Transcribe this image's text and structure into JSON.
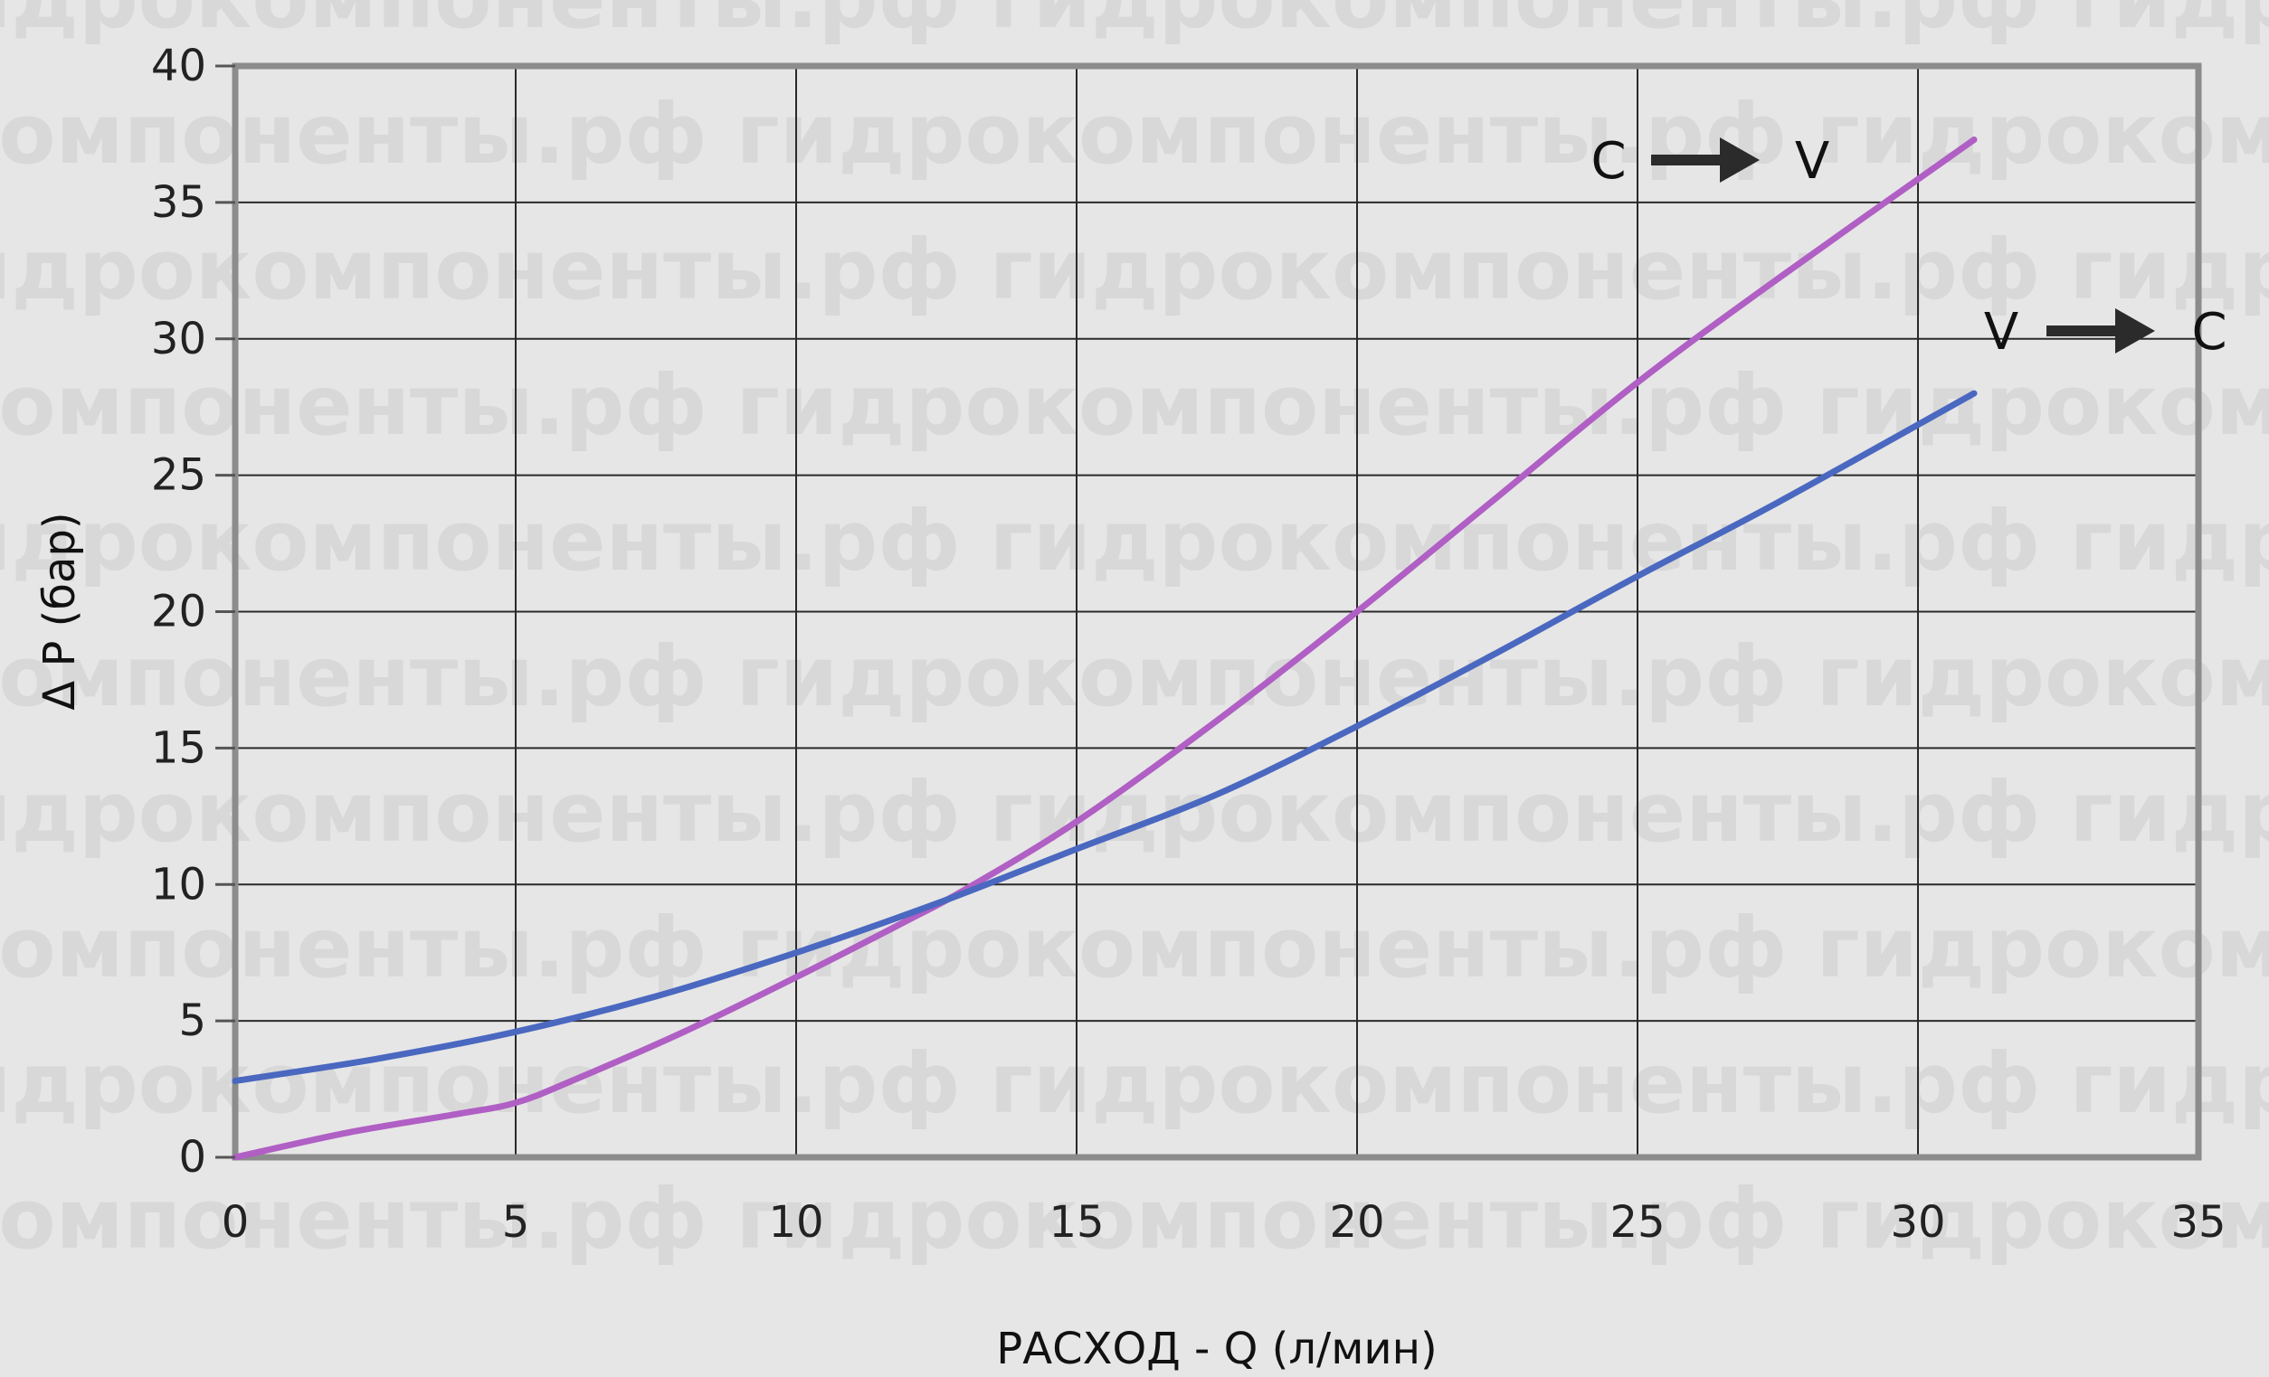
{
  "watermark": "гидрокомпоненты.рф",
  "chart_data": {
    "type": "line",
    "xlabel": "РАСХОД - Q (л/мин)",
    "ylabel": "Δ P (бар)",
    "xlim": [
      0,
      35
    ],
    "ylim": [
      0,
      40
    ],
    "xticks": [
      0,
      5,
      10,
      15,
      20,
      25,
      30,
      35
    ],
    "yticks": [
      0,
      5,
      10,
      15,
      20,
      25,
      30,
      35,
      40
    ],
    "grid": true,
    "series": [
      {
        "name": "C → V",
        "color": "#b05fc4",
        "x": [
          0,
          2,
          4,
          5,
          6,
          8,
          10,
          12,
          13,
          15,
          17.5,
          20,
          22.5,
          25,
          27.5,
          31
        ],
        "y": [
          0,
          0.9,
          1.6,
          2.0,
          2.8,
          4.6,
          6.6,
          8.7,
          9.8,
          12.3,
          16.0,
          20.0,
          24.2,
          28.4,
          32.2,
          37.3
        ]
      },
      {
        "name": "V → C",
        "color": "#4a68c0",
        "x": [
          0,
          2.5,
          5,
          7.5,
          10,
          12.5,
          15,
          17.5,
          20,
          22.5,
          25,
          27.5,
          31
        ],
        "y": [
          2.8,
          3.6,
          4.6,
          5.9,
          7.5,
          9.3,
          11.3,
          13.3,
          15.8,
          18.5,
          21.3,
          24.0,
          28.0
        ]
      }
    ],
    "annotations": [
      {
        "from": "C",
        "to": "V",
        "series": "C → V"
      },
      {
        "from": "V",
        "to": "C",
        "series": "V → C"
      }
    ]
  }
}
